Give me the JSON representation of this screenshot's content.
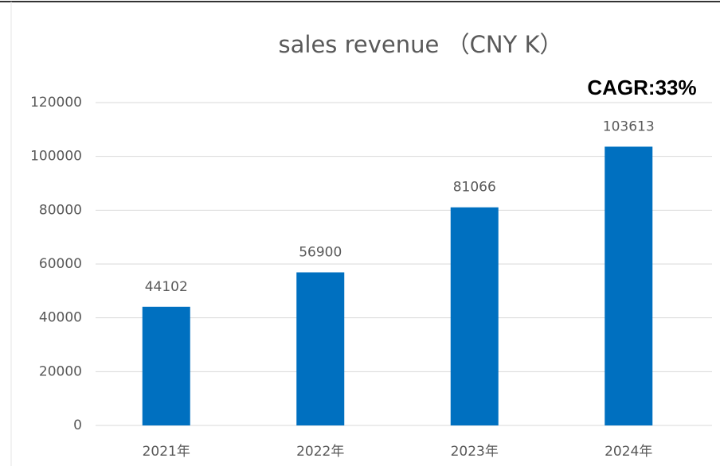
{
  "chart_data": {
    "type": "bar",
    "title": "sales revenue （CNY K）",
    "annotation": "CAGR:33%",
    "categories": [
      "2021年",
      "2022年",
      "2023年",
      "2024年"
    ],
    "values": [
      44102,
      56900,
      81066,
      103613
    ],
    "color": "#0070c0",
    "ylim": [
      0,
      120000
    ],
    "yticks": [
      0,
      20000,
      40000,
      60000,
      80000,
      100000,
      120000
    ],
    "grid": true
  }
}
